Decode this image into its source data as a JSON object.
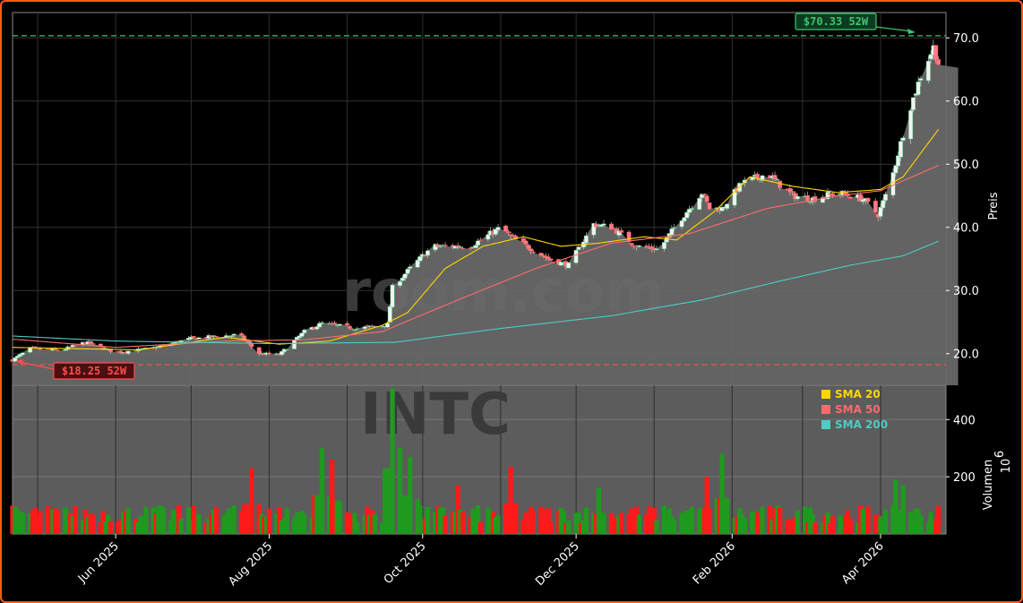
{
  "chart_data": {
    "type": "candlestick",
    "ticker_watermark": "INTC",
    "site_watermark": "room.com",
    "price_axis": {
      "label": "Preis",
      "ylim": [
        15,
        74
      ],
      "ticks": [
        20,
        30,
        40,
        50,
        60,
        70
      ],
      "tick_labels": [
        "20.0",
        "30.0",
        "40.0",
        "50.0",
        "60.0",
        "70.0"
      ],
      "side": "right"
    },
    "volume_axis": {
      "label": "Volumen",
      "exponent_label": "10",
      "exponent_power": "6",
      "ylim": [
        0,
        520
      ],
      "ticks": [
        200,
        400
      ],
      "tick_labels": [
        "200",
        "400"
      ]
    },
    "x_axis": {
      "start": "2025-04-21",
      "end": "2026-04-27",
      "ticks": [
        {
          "date": "2025-06-01",
          "label": "Jun 2025"
        },
        {
          "date": "2025-08-01",
          "label": "Aug 2025"
        },
        {
          "date": "2025-10-01",
          "label": "Oct 2025"
        },
        {
          "date": "2025-12-01",
          "label": "Dec 2025"
        },
        {
          "date": "2026-02-01",
          "label": "Feb 2026"
        },
        {
          "date": "2026-04-01",
          "label": "Apr 2026"
        }
      ]
    },
    "grid": true,
    "legend_position": "bottom-right",
    "legend": [
      {
        "name": "SMA 20",
        "color": "#ffd700"
      },
      {
        "name": "SMA 50",
        "color": "#ff6b6b"
      },
      {
        "name": "SMA 200",
        "color": "#4ecdc4"
      }
    ],
    "high_52w": {
      "value": 70.33,
      "label": "$70.33 52W",
      "color": "#3ec46d"
    },
    "low_52w": {
      "value": 18.25,
      "label": "$18.25 52W",
      "color": "#ff4d4d"
    },
    "close_anchors": [
      [
        "2025-04-21",
        19.0
      ],
      [
        "2025-04-28",
        20.8
      ],
      [
        "2025-05-10",
        20.5
      ],
      [
        "2025-05-20",
        21.8
      ],
      [
        "2025-06-01",
        20.2
      ],
      [
        "2025-06-15",
        20.8
      ],
      [
        "2025-07-01",
        22.4
      ],
      [
        "2025-07-20",
        23.0
      ],
      [
        "2025-07-28",
        20.0
      ],
      [
        "2025-08-05",
        19.8
      ],
      [
        "2025-08-15",
        23.5
      ],
      [
        "2025-08-22",
        24.8
      ],
      [
        "2025-09-05",
        24.0
      ],
      [
        "2025-09-17",
        24.6
      ],
      [
        "2025-09-19",
        30.5
      ],
      [
        "2025-09-26",
        33.5
      ],
      [
        "2025-10-05",
        37.0
      ],
      [
        "2025-10-20",
        37.0
      ],
      [
        "2025-11-01",
        40.0
      ],
      [
        "2025-11-05",
        38.5
      ],
      [
        "2025-11-20",
        35.0
      ],
      [
        "2025-11-28",
        34.0
      ],
      [
        "2025-12-08",
        40.5
      ],
      [
        "2025-12-15",
        40.0
      ],
      [
        "2025-12-25",
        37.0
      ],
      [
        "2026-01-03",
        36.5
      ],
      [
        "2026-01-10",
        40.5
      ],
      [
        "2026-01-20",
        45.5
      ],
      [
        "2026-01-23",
        43.0
      ],
      [
        "2026-01-28",
        43.0
      ],
      [
        "2026-02-05",
        47.0
      ],
      [
        "2026-02-15",
        48.5
      ],
      [
        "2026-02-25",
        45.0
      ],
      [
        "2026-03-05",
        44.5
      ],
      [
        "2026-03-15",
        45.5
      ],
      [
        "2026-03-25",
        44.5
      ],
      [
        "2026-03-31",
        42.0
      ],
      [
        "2026-04-05",
        47.0
      ],
      [
        "2026-04-12",
        58.0
      ],
      [
        "2026-04-17",
        64.0
      ],
      [
        "2026-04-22",
        68.5
      ],
      [
        "2026-04-24",
        66.0
      ]
    ],
    "sma_anchors": {
      "sma20": [
        [
          "2025-04-21",
          21.0
        ],
        [
          "2025-05-15",
          20.8
        ],
        [
          "2025-06-10",
          20.6
        ],
        [
          "2025-07-15",
          22.6
        ],
        [
          "2025-08-05",
          21.5
        ],
        [
          "2025-08-25",
          22.0
        ],
        [
          "2025-09-15",
          24.5
        ],
        [
          "2025-09-25",
          26.5
        ],
        [
          "2025-10-10",
          33.5
        ],
        [
          "2025-10-25",
          37.0
        ],
        [
          "2025-11-10",
          38.5
        ],
        [
          "2025-11-25",
          37.0
        ],
        [
          "2025-12-10",
          37.5
        ],
        [
          "2025-12-28",
          38.5
        ],
        [
          "2026-01-10",
          38.0
        ],
        [
          "2026-01-25",
          42.5
        ],
        [
          "2026-02-08",
          48.0
        ],
        [
          "2026-02-25",
          46.5
        ],
        [
          "2026-03-15",
          45.5
        ],
        [
          "2026-04-01",
          46.0
        ],
        [
          "2026-04-10",
          48.0
        ],
        [
          "2026-04-24",
          55.5
        ]
      ],
      "sma50": [
        [
          "2025-04-21",
          22.3
        ],
        [
          "2025-06-01",
          21.0
        ],
        [
          "2025-07-15",
          22.0
        ],
        [
          "2025-08-15",
          22.2
        ],
        [
          "2025-09-15",
          23.5
        ],
        [
          "2025-10-15",
          28.5
        ],
        [
          "2025-11-15",
          33.5
        ],
        [
          "2025-12-15",
          37.5
        ],
        [
          "2026-01-15",
          39.0
        ],
        [
          "2026-02-15",
          43.0
        ],
        [
          "2026-03-15",
          45.0
        ],
        [
          "2026-04-01",
          45.8
        ],
        [
          "2026-04-24",
          49.8
        ]
      ],
      "sma200": [
        [
          "2025-04-21",
          22.8
        ],
        [
          "2025-06-01",
          22.0
        ],
        [
          "2025-08-01",
          21.6
        ],
        [
          "2025-09-20",
          21.8
        ],
        [
          "2025-11-01",
          24.0
        ],
        [
          "2025-12-15",
          26.0
        ],
        [
          "2026-01-20",
          28.5
        ],
        [
          "2026-02-20",
          31.5
        ],
        [
          "2026-03-20",
          34.0
        ],
        [
          "2026-04-10",
          35.5
        ],
        [
          "2026-04-24",
          37.8
        ]
      ]
    },
    "volume": {
      "base_m": 70,
      "spikes_m": [
        [
          "2025-09-19",
          510
        ],
        [
          "2025-09-22",
          300
        ],
        [
          "2025-08-22",
          300
        ],
        [
          "2025-08-26",
          260
        ],
        [
          "2025-07-25",
          230
        ],
        [
          "2025-09-26",
          270
        ],
        [
          "2025-11-05",
          235
        ],
        [
          "2026-01-28",
          280
        ],
        [
          "2026-01-22",
          200
        ],
        [
          "2026-04-07",
          190
        ],
        [
          "2025-10-15",
          170
        ],
        [
          "2025-12-10",
          160
        ],
        [
          "2026-03-28",
          150
        ],
        [
          "2026-04-10",
          170
        ]
      ]
    }
  }
}
